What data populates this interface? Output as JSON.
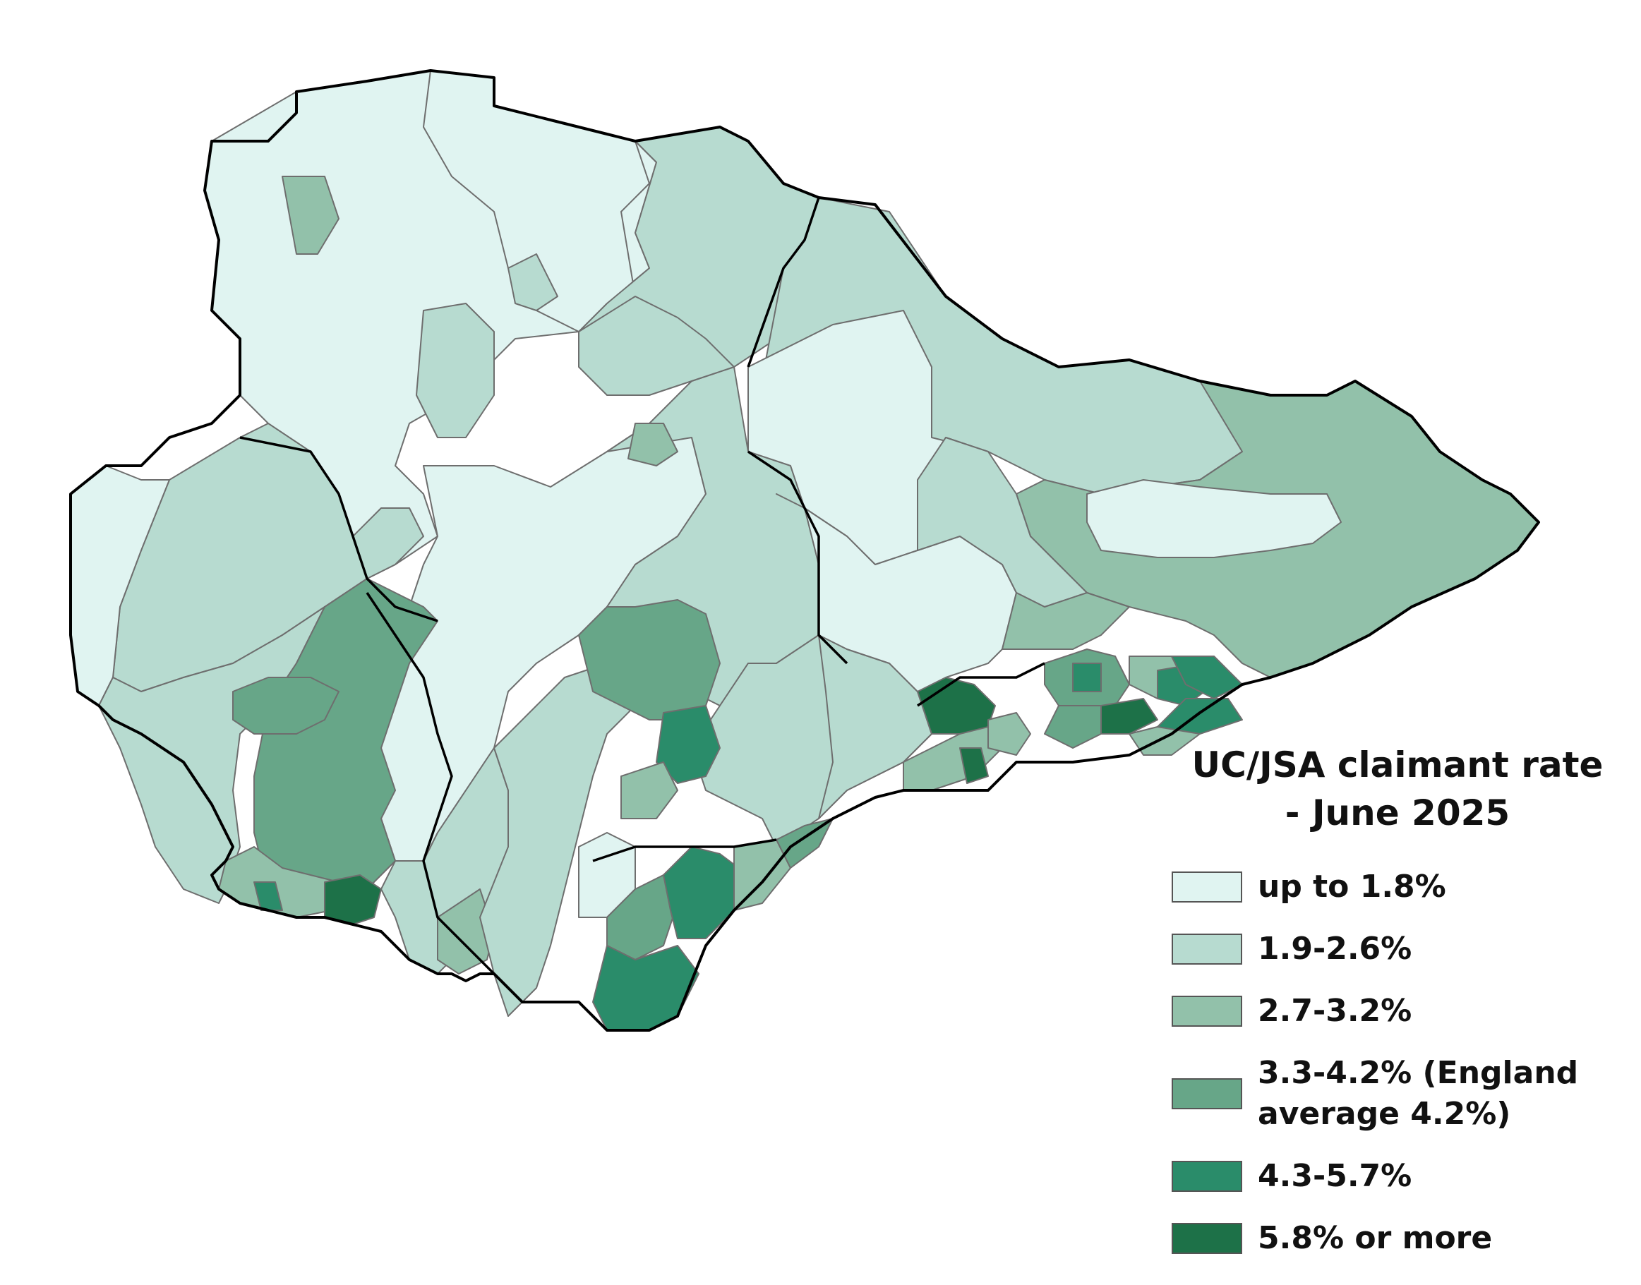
{
  "legend": {
    "title_line1": "UC/JSA claimant rate",
    "title_line2": "- June 2025",
    "items": [
      {
        "label": "up to 1.8%",
        "color": "#e0f4f1"
      },
      {
        "label": "1.9-2.6%",
        "color": "#b7dbd0"
      },
      {
        "label": "2.7-3.2%",
        "color": "#92c1aa"
      },
      {
        "label": "3.3-4.2% (England average 4.2%)",
        "color": "#67a688"
      },
      {
        "label": "4.3-5.7%",
        "color": "#2a8c6a"
      },
      {
        "label": "5.8% or more",
        "color": "#1d7148"
      }
    ]
  }
}
